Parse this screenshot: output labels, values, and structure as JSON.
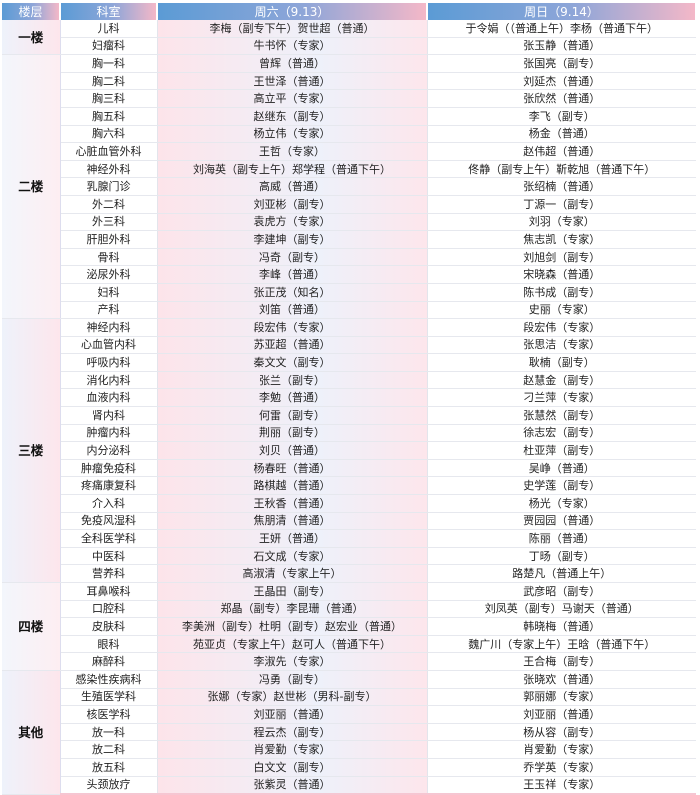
{
  "header": {
    "floor": "楼层",
    "dept": "科室",
    "sat": "周六（9.13）",
    "sun": "周日（9.14）"
  },
  "colors": {
    "header_start": "#5b9bd5",
    "header_end": "#f4b8c8"
  },
  "floors": [
    {
      "name": "一楼",
      "rows": [
        [
          "儿科",
          "李梅（副专下午）贺世超（普通）",
          "于令娟（（普通上午）李杨（普通下午）"
        ],
        [
          "妇瘤科",
          "牛书怀（专家）",
          "张玉静（普通）"
        ]
      ]
    },
    {
      "name": "二楼",
      "rows": [
        [
          "胸一科",
          "曾辉（普通）",
          "张国亮（副专）"
        ],
        [
          "胸二科",
          "王世泽（普通）",
          "刘延杰（普通）"
        ],
        [
          "胸三科",
          "高立平（专家）",
          "张欣然（普通）"
        ],
        [
          "胸五科",
          "赵继东（副专）",
          "李飞（副专）"
        ],
        [
          "胸六科",
          "杨立伟（专家）",
          "杨金（普通）"
        ],
        [
          "心脏血管外科",
          "王哲（专家）",
          "赵伟超（普通）"
        ],
        [
          "神经外科",
          "刘海英（副专上午）郑学程（普通下午）",
          "佟静（副专上午）靳乾旭（普通下午）"
        ],
        [
          "乳腺门诊",
          "高威（普通）",
          "张绍楠（普通）"
        ],
        [
          "外二科",
          "刘亚彬（副专）",
          "丁源一（副专）"
        ],
        [
          "外三科",
          "袁虎方（专家）",
          "刘羽（专家）"
        ],
        [
          "肝胆外科",
          "李建坤（副专）",
          "焦志凯（专家）"
        ],
        [
          "骨科",
          "冯奇（副专）",
          "刘旭剑（副专）"
        ],
        [
          "泌尿外科",
          "李峰（普通）",
          "宋晓森（普通）"
        ],
        [
          "妇科",
          "张正茂（知名）",
          "陈书成（副专）"
        ],
        [
          "产科",
          "刘笛（普通）",
          "史丽（专家）"
        ]
      ]
    },
    {
      "name": "三楼",
      "rows": [
        [
          "神经内科",
          "段宏伟（专家）",
          "段宏伟（专家）"
        ],
        [
          "心血管内科",
          "苏亚超（普通）",
          "张思洁（专家）"
        ],
        [
          "呼吸内科",
          "秦文文（副专）",
          "耿楠（副专）"
        ],
        [
          "消化内科",
          "张兰（副专）",
          "赵慧金（副专）"
        ],
        [
          "血液内科",
          "李勉（普通）",
          "刁兰萍（专家）"
        ],
        [
          "肾内科",
          "何雷（副专）",
          "张慧然（副专）"
        ],
        [
          "肿瘤内科",
          "荆丽（副专）",
          "徐志宏（副专）"
        ],
        [
          "内分泌科",
          "刘贝（普通）",
          "杜亚萍（副专）"
        ],
        [
          "肿瘤免疫科",
          "杨春旺（普通）",
          "吴峥（普通）"
        ],
        [
          "疼痛康复科",
          "路棋越（普通）",
          "史学莲（副专）"
        ],
        [
          "介入科",
          "王秋香（普通）",
          "杨光（专家）"
        ],
        [
          "免疫风湿科",
          "焦朋清（普通）",
          "贾园园（普通）"
        ],
        [
          "全科医学科",
          "王妍（普通）",
          "陈丽（普通）"
        ],
        [
          "中医科",
          "石文成（专家）",
          "丁旸（副专）"
        ],
        [
          "营养科",
          "高淑清（专家上午）",
          "路楚凡（普通上午）"
        ]
      ]
    },
    {
      "name": "四楼",
      "rows": [
        [
          "耳鼻喉科",
          "王晶田（副专）",
          "武彦昭（副专）"
        ],
        [
          "口腔科",
          "郑晶（副专）李昆珊（普通）",
          "刘凤英（副专）马谢天（普通）"
        ],
        [
          "皮肤科",
          "李美洲（副专）杜明（副专）赵宏业（普通）",
          "韩晓梅（普通）"
        ],
        [
          "眼科",
          "苑亚贞（专家上午）赵可人（普通下午）",
          "魏广川（专家上午）王晗（普通下午）"
        ],
        [
          "麻醉科",
          "李淑先（专家）",
          "王合梅（副专）"
        ]
      ]
    },
    {
      "name": "其他",
      "rows": [
        [
          "感染性疾病科",
          "冯勇（副专）",
          "张晓欢（普通）"
        ],
        [
          "生殖医学科",
          "张娜（专家）赵世彬（男科-副专）",
          "郭丽娜（专家）"
        ],
        [
          "核医学科",
          "刘亚丽（普通）",
          "刘亚丽（普通）"
        ],
        [
          "放一科",
          "程云杰（副专）",
          "杨从容（副专）"
        ],
        [
          "放二科",
          "肖爱勤（专家）",
          "肖爱勤（专家）"
        ],
        [
          "放五科",
          "白文文（副专）",
          "乔学英（专家）"
        ],
        [
          "头颈放疗",
          "张紫灵（普通）",
          "王玉祥（专家）"
        ]
      ]
    }
  ]
}
